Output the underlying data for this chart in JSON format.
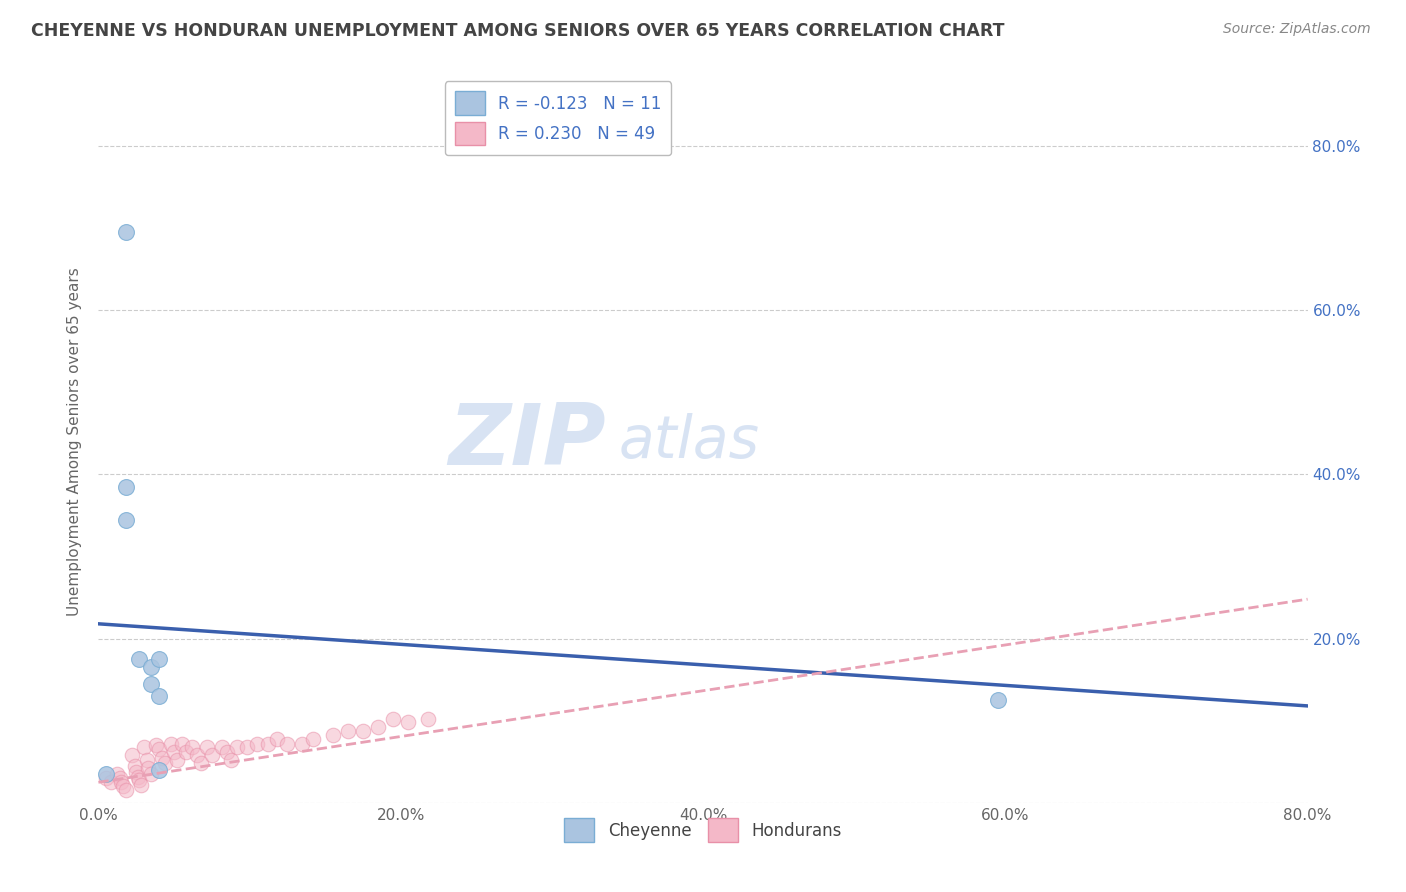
{
  "title": "CHEYENNE VS HONDURAN UNEMPLOYMENT AMONG SENIORS OVER 65 YEARS CORRELATION CHART",
  "source": "Source: ZipAtlas.com",
  "ylabel": "Unemployment Among Seniors over 65 years",
  "xlabel": "",
  "xlim": [
    0.0,
    0.8
  ],
  "ylim": [
    0.0,
    0.88
  ],
  "xticks": [
    0.0,
    0.2,
    0.4,
    0.6,
    0.8
  ],
  "yticks": [
    0.0,
    0.2,
    0.4,
    0.6,
    0.8
  ],
  "xtick_labels": [
    "0.0%",
    "20.0%",
    "40.0%",
    "60.0%",
    "80.0%"
  ],
  "ytick_labels_right": [
    "",
    "20.0%",
    "40.0%",
    "60.0%",
    "80.0%"
  ],
  "cheyenne_color": "#aac4e0",
  "cheyenne_edge_color": "#7aadd4",
  "honduran_color": "#f4b8c8",
  "honduran_edge_color": "#e890a8",
  "cheyenne_line_color": "#3a5fad",
  "honduran_line_color": "#e8a0b4",
  "legend_R_cheyenne": "-0.123",
  "legend_N_cheyenne": "11",
  "legend_R_honduran": "0.230",
  "legend_N_honduran": "49",
  "cheyenne_trend_x0": 0.0,
  "cheyenne_trend_x1": 0.8,
  "cheyenne_trend_y0": 0.218,
  "cheyenne_trend_y1": 0.118,
  "honduran_trend_x0": 0.0,
  "honduran_trend_x1": 0.8,
  "honduran_trend_y0": 0.025,
  "honduran_trend_y1": 0.248,
  "cheyenne_x": [
    0.018,
    0.018,
    0.018,
    0.027,
    0.035,
    0.035,
    0.04,
    0.04,
    0.04,
    0.595,
    0.005
  ],
  "cheyenne_y": [
    0.695,
    0.385,
    0.345,
    0.175,
    0.165,
    0.145,
    0.175,
    0.13,
    0.04,
    0.125,
    0.035
  ],
  "honduran_x": [
    0.005,
    0.008,
    0.012,
    0.014,
    0.015,
    0.016,
    0.018,
    0.022,
    0.024,
    0.025,
    0.026,
    0.027,
    0.028,
    0.03,
    0.032,
    0.033,
    0.035,
    0.038,
    0.04,
    0.042,
    0.044,
    0.048,
    0.05,
    0.052,
    0.055,
    0.058,
    0.062,
    0.065,
    0.068,
    0.072,
    0.075,
    0.082,
    0.085,
    0.088,
    0.092,
    0.098,
    0.105,
    0.112,
    0.118,
    0.125,
    0.135,
    0.142,
    0.155,
    0.165,
    0.175,
    0.185,
    0.195,
    0.205,
    0.218
  ],
  "honduran_y": [
    0.03,
    0.025,
    0.035,
    0.03,
    0.025,
    0.02,
    0.015,
    0.058,
    0.045,
    0.038,
    0.032,
    0.028,
    0.022,
    0.068,
    0.052,
    0.042,
    0.035,
    0.07,
    0.065,
    0.055,
    0.048,
    0.072,
    0.062,
    0.052,
    0.072,
    0.062,
    0.068,
    0.058,
    0.048,
    0.068,
    0.058,
    0.068,
    0.062,
    0.052,
    0.068,
    0.068,
    0.072,
    0.072,
    0.078,
    0.072,
    0.072,
    0.078,
    0.082,
    0.088,
    0.088,
    0.092,
    0.102,
    0.098,
    0.102
  ]
}
